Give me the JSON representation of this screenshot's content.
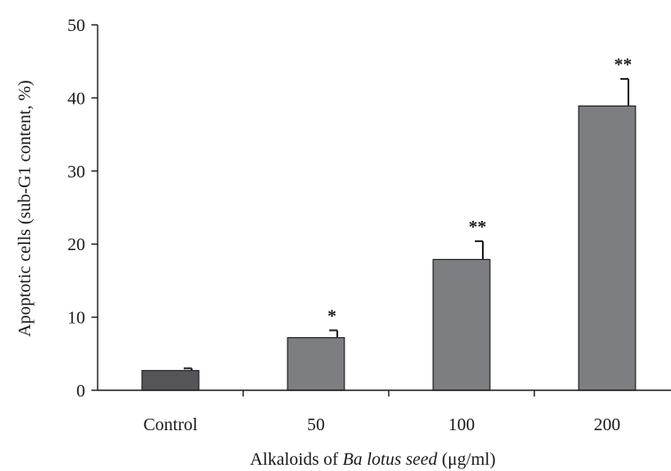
{
  "chart_data": {
    "type": "bar",
    "categories": [
      "Control",
      "50",
      "100",
      "200"
    ],
    "values": [
      2.7,
      7.2,
      17.9,
      38.9
    ],
    "errors": [
      0.3,
      1.0,
      2.5,
      3.7
    ],
    "significance": [
      "",
      "*",
      "**",
      "**"
    ],
    "bar_colors": [
      "#555559",
      "#7d7e82",
      "#7d7e82",
      "#7d7e82"
    ],
    "ylabel": "Apoptotic cells (sub-G1 content, %)",
    "xlabel_prefix": "Alkaloids of ",
    "xlabel_italic": "Ba lotus seed",
    "xlabel_suffix": " (μg/ml)",
    "ylim": [
      0,
      50
    ],
    "yticks": [
      0,
      10,
      20,
      30,
      40,
      50
    ],
    "grid": false,
    "legend": "none"
  }
}
